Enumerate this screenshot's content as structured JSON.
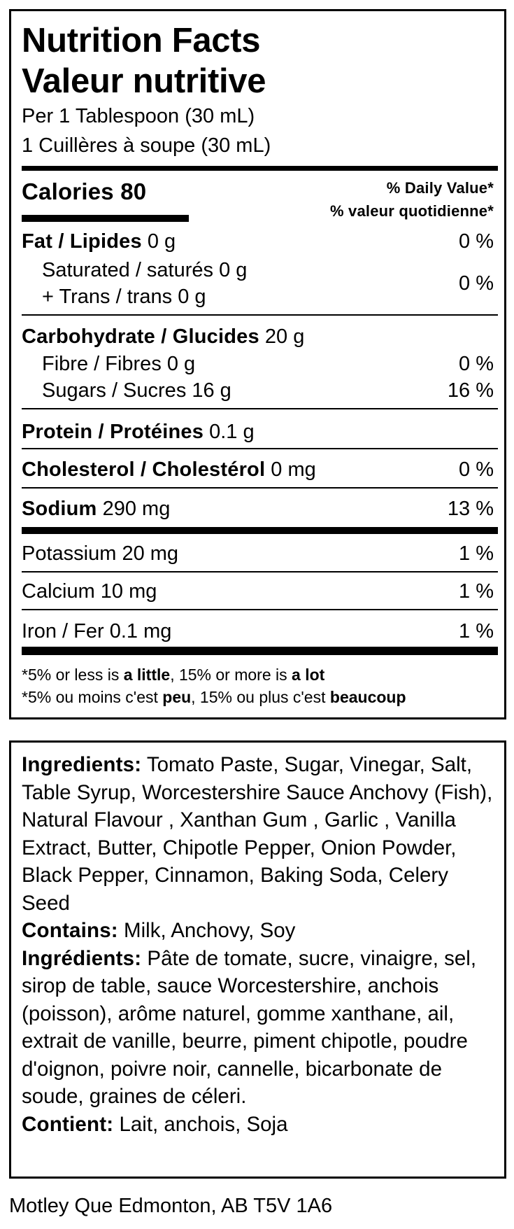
{
  "nutrition": {
    "title_en": "Nutrition Facts",
    "title_fr": "Valeur nutritive",
    "serving_en": "Per 1 Tablespoon (30 mL)",
    "serving_fr": "1 Cuillères à soupe (30 mL)",
    "calories_label": "Calories 80",
    "dv_en": "% Daily Value*",
    "dv_fr": "% valeur quotidienne*",
    "rows": [
      {
        "label": "Fat / Lipides",
        "amount": "0 g",
        "dv": "0 %"
      },
      {
        "label": "Saturated / saturés 0 g",
        "label2": "+ Trans / trans 0 g",
        "dv": "0 %"
      },
      {
        "label": "Carbohydrate / Glucides",
        "amount": "20 g"
      },
      {
        "label": "Fibre / Fibres 0 g",
        "dv": "0 %"
      },
      {
        "label": "Sugars / Sucres 16 g",
        "dv": "16 %"
      },
      {
        "label": "Protein / Protéines",
        "amount": "0.1 g"
      },
      {
        "label": "Cholesterol / Cholestérol",
        "amount": "0 mg",
        "dv": "0 %"
      },
      {
        "label": "Sodium",
        "amount": "290 mg",
        "dv": "13 %"
      },
      {
        "label": "Potassium 20 mg",
        "dv": "1 %"
      },
      {
        "label": "Calcium 10 mg",
        "dv": "1 %"
      },
      {
        "label": "Iron / Fer 0.1 mg",
        "dv": "1 %"
      }
    ],
    "footnote_en": {
      "a": "*5% or less is ",
      "b": "a little",
      "c": ", 15% or more is ",
      "d": "a lot"
    },
    "footnote_fr": {
      "a": "*5% ou moins c'est ",
      "b": "peu",
      "c": ", 15% ou plus c'est ",
      "d": "beaucoup"
    }
  },
  "ingredients": {
    "en_label": "Ingredients:",
    "en_text": " Tomato Paste, Sugar, Vinegar, Salt, Table Syrup, Worcestershire Sauce Anchovy (Fish), Natural Flavour , Xanthan Gum , Garlic , Vanilla Extract, Butter, Chipotle Pepper, Onion Powder, Black Pepper, Cinnamon, Baking Soda, Celery Seed",
    "contains_label": "Contains:",
    "contains_text": " Milk, Anchovy, Soy",
    "fr_label": "Ingrédients:",
    "fr_text": " Pâte de tomate, sucre, vinaigre, sel, sirop de table, sauce Worcestershire, anchois (poisson), arôme naturel, gomme xanthane, ail, extrait de vanille, beurre, piment chipotle, poudre d'oignon, poivre noir, cannelle, bicarbonate de soude, graines de céleri.",
    "contient_label": "Contient:",
    "contient_text": " Lait, anchois, Soja"
  },
  "address": "Motley Que Edmonton, AB T5V 1A6"
}
